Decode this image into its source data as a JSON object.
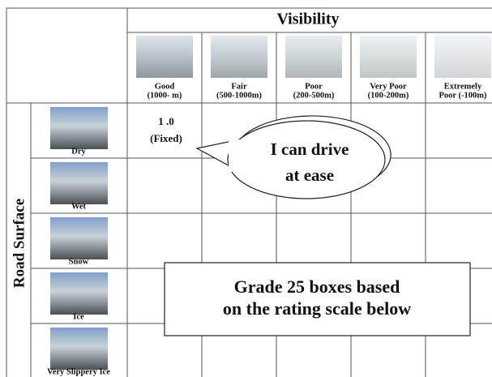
{
  "table": {
    "column_group": "Visibility",
    "row_group": "Road Surface",
    "columns": [
      {
        "lines": [
          "Good",
          "(1000- m)"
        ]
      },
      {
        "lines": [
          "Fair",
          "(500-1000m)"
        ]
      },
      {
        "lines": [
          "Poor",
          "(200-500m)"
        ]
      },
      {
        "lines": [
          "Very Poor",
          "(100-200m)"
        ]
      },
      {
        "lines": [
          "Extremely",
          "Poor (-100m)"
        ]
      }
    ],
    "rows": [
      "Dry",
      "Wet",
      "Snow",
      "Ice",
      "Very Slippery Ice"
    ],
    "first_cell": [
      "1 .0",
      "(Fixed)"
    ]
  },
  "callout": [
    "I can drive",
    "at ease"
  ],
  "note": [
    "Grade 25 boxes based",
    "on the rating scale below"
  ]
}
